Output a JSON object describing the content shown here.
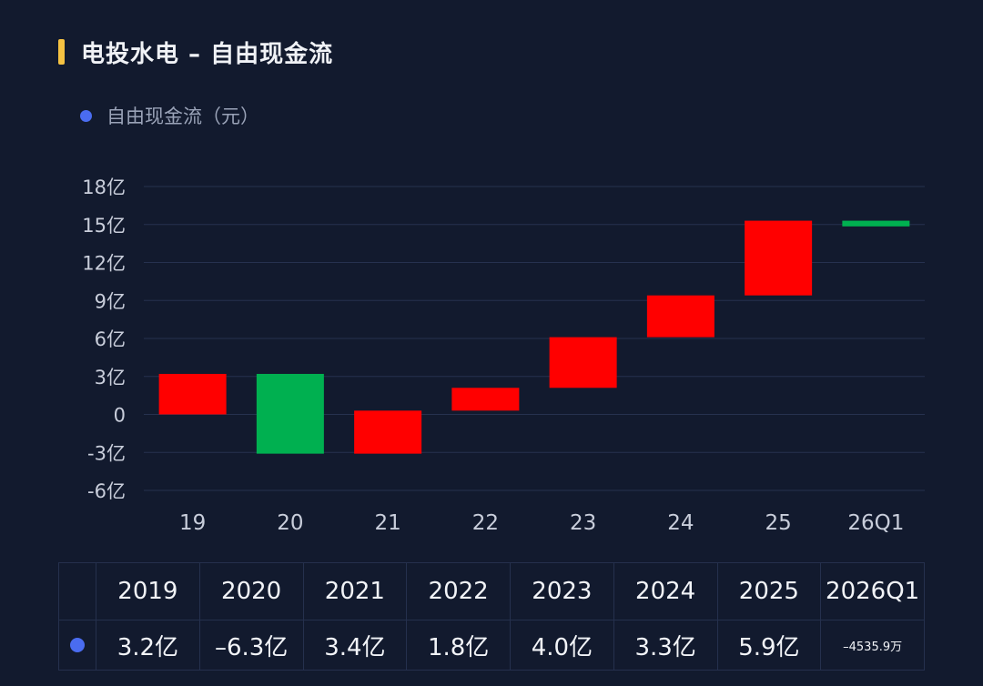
{
  "header": {
    "title": "电投水电 – 自由现金流"
  },
  "legend": {
    "label": "自由现金流（元）",
    "color": "#4a6cf0"
  },
  "chart_data": {
    "type": "waterfall",
    "categories": [
      "19",
      "20",
      "21",
      "22",
      "23",
      "24",
      "25",
      "26Q1"
    ],
    "y_ticks": [
      "18亿",
      "15亿",
      "12亿",
      "9亿",
      "6亿",
      "3亿",
      "0",
      "-3亿",
      "-6亿"
    ],
    "ylim": [
      -6,
      18
    ],
    "y_unit": "亿",
    "bars": [
      {
        "category": "19",
        "start": 0,
        "end": 3.2,
        "change": 3.2,
        "color": "#ff0000"
      },
      {
        "category": "20",
        "start": 3.2,
        "end": -3.1,
        "change": -6.3,
        "color": "#00b050"
      },
      {
        "category": "21",
        "start": -3.1,
        "end": 0.3,
        "change": 3.4,
        "color": "#ff0000"
      },
      {
        "category": "22",
        "start": 0.3,
        "end": 2.1,
        "change": 1.8,
        "color": "#ff0000"
      },
      {
        "category": "23",
        "start": 2.1,
        "end": 6.1,
        "change": 4.0,
        "color": "#ff0000"
      },
      {
        "category": "24",
        "start": 6.1,
        "end": 9.4,
        "change": 3.3,
        "color": "#ff0000"
      },
      {
        "category": "25",
        "start": 9.4,
        "end": 15.3,
        "change": 5.9,
        "color": "#ff0000"
      },
      {
        "category": "26Q1",
        "start": 15.3,
        "end": 14.85,
        "change": -0.45359,
        "color": "#00b050"
      }
    ],
    "grid": true,
    "legend_position": "top-left"
  },
  "table": {
    "years": [
      "2019",
      "2020",
      "2021",
      "2022",
      "2023",
      "2024",
      "2025",
      "2026Q1"
    ],
    "values": [
      "3.2亿",
      "–6.3亿",
      "3.4亿",
      "1.8亿",
      "4.0亿",
      "3.3亿",
      "5.9亿",
      "–4535.9万"
    ]
  }
}
